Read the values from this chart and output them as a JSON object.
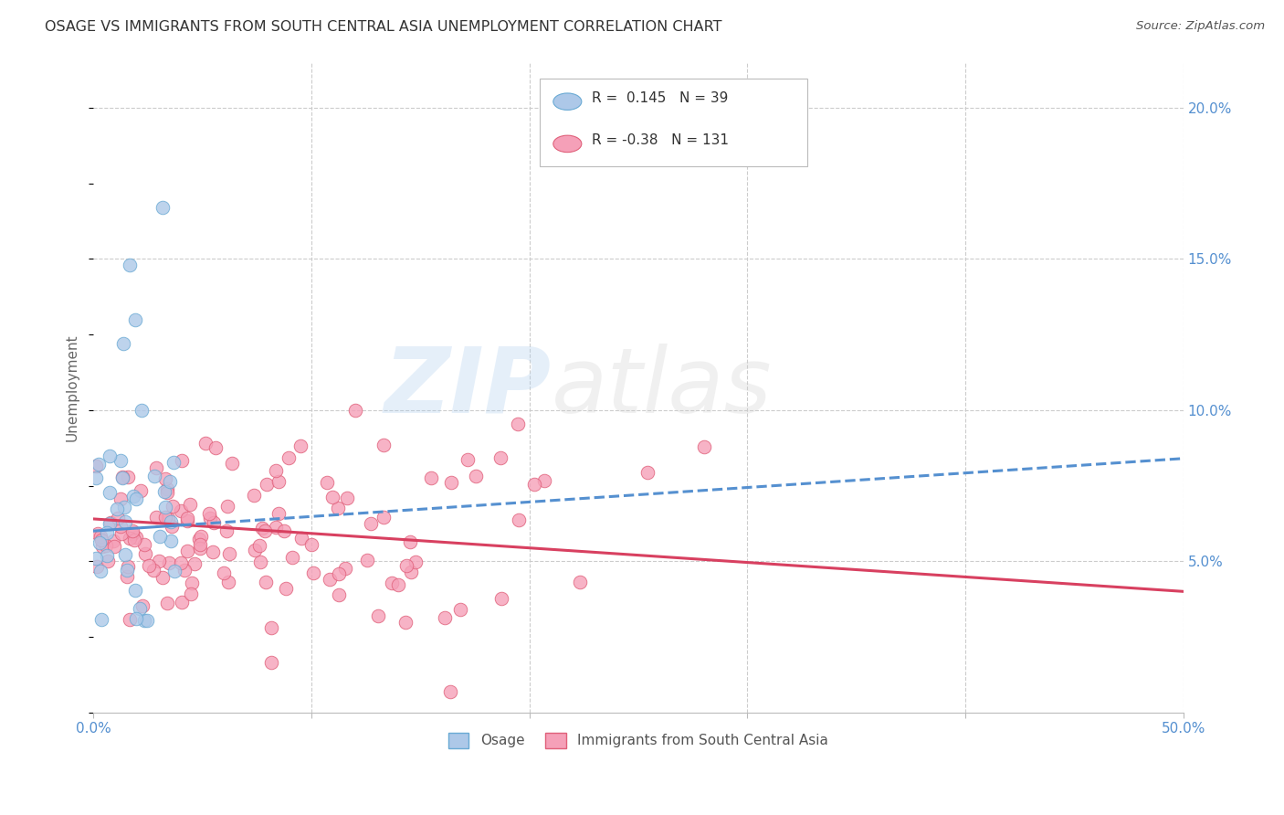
{
  "title": "OSAGE VS IMMIGRANTS FROM SOUTH CENTRAL ASIA UNEMPLOYMENT CORRELATION CHART",
  "source": "Source: ZipAtlas.com",
  "ylabel": "Unemployment",
  "xlim": [
    0.0,
    0.5
  ],
  "ylim": [
    0.0,
    0.215
  ],
  "xticks": [
    0.0,
    0.1,
    0.2,
    0.3,
    0.4,
    0.5
  ],
  "xticklabels": [
    "0.0%",
    "",
    "",
    "",
    "",
    "50.0%"
  ],
  "yticks_right": [
    0.05,
    0.1,
    0.15,
    0.2
  ],
  "yticklabels_right": [
    "5.0%",
    "10.0%",
    "15.0%",
    "20.0%"
  ],
  "series1_color": "#adc8e8",
  "series1_edge": "#6aaad4",
  "series2_color": "#f5a0b8",
  "series2_edge": "#e0607a",
  "trend1_color": "#5590d0",
  "trend2_color": "#d84060",
  "R1": 0.145,
  "N1": 39,
  "R2": -0.38,
  "N2": 131,
  "legend1": "Osage",
  "legend2": "Immigrants from South Central Asia",
  "background_color": "#ffffff",
  "grid_color": "#cccccc",
  "title_color": "#333333",
  "axis_tick_color": "#5590d0",
  "watermark_zip": "ZIP",
  "watermark_atlas": "atlas",
  "seed": 42,
  "trend1_intercept": 0.06,
  "trend1_slope": 0.048,
  "trend2_intercept": 0.064,
  "trend2_slope": -0.048
}
